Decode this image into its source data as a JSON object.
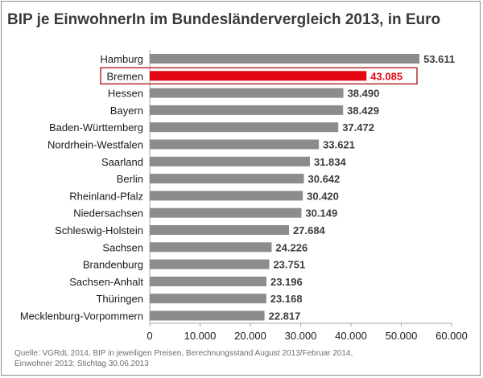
{
  "title": "BIP je EinwohnerIn im Bundesländervergleich 2013, in Euro",
  "source_lines": [
    "Quelle:  VGRdL 2014,  BIP in jeweiligen  Preisen,  Berechnungsstand  August 2013/Februar 2014,",
    "Einwohner 2013: Stichtag 30.06.2013"
  ],
  "colors": {
    "bar": "#8c8c8c",
    "highlight_bar": "#e30613",
    "highlight_box": "#b52b2b",
    "highlight_text": "#e30613"
  },
  "chart_data": {
    "type": "bar",
    "orientation": "horizontal",
    "title": "BIP je EinwohnerIn im Bundesländervergleich 2013, in Euro",
    "categories": [
      "Hamburg",
      "Bremen",
      "Hessen",
      "Bayern",
      "Baden-Württemberg",
      "Nordrhein-Westfalen",
      "Saarland",
      "Berlin",
      "Rheinland-Pfalz",
      "Niedersachsen",
      "Schleswig-Holstein",
      "Sachsen",
      "Brandenburg",
      "Sachsen-Anhalt",
      "Thüringen",
      "Mecklenburg-Vorpommern"
    ],
    "values": [
      53611,
      43085,
      38490,
      38429,
      37472,
      33621,
      31834,
      30642,
      30420,
      30149,
      27684,
      24226,
      23751,
      23196,
      23168,
      22817
    ],
    "value_labels": [
      "53.611",
      "43.085",
      "38.490",
      "38.429",
      "37.472",
      "33.621",
      "31.834",
      "30.642",
      "30.420",
      "30.149",
      "27.684",
      "24.226",
      "23.751",
      "23.196",
      "23.168",
      "22.817"
    ],
    "highlight": "Bremen",
    "xlim": [
      0,
      60000
    ],
    "xticks": [
      0,
      10000,
      20000,
      30000,
      40000,
      50000,
      60000
    ],
    "xtick_labels": [
      "0",
      "10.000",
      "20.000",
      "30.000",
      "40.000",
      "50.000",
      "60.000"
    ],
    "xlabel": "",
    "ylabel": "",
    "grid": false,
    "legend": "none"
  }
}
